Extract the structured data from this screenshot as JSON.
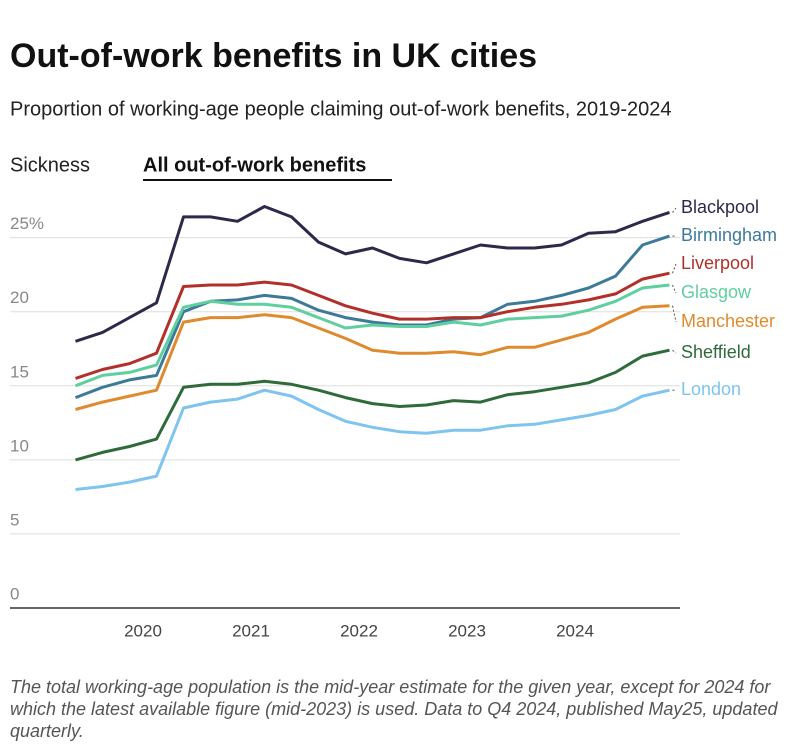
{
  "chart_data": {
    "type": "line",
    "title": "Out-of-work benefits in UK cities",
    "subtitle": "Proportion of working-age people claiming out-of-work benefits, 2019-2024",
    "tabs": [
      "Sickness",
      "All out-of-work benefits"
    ],
    "note": "The total working-age population is the mid-year estimate for the given year, except for 2024 for which the latest available figure (mid-2023) is used. Data to Q4 2024, published May25, updated quarterly.",
    "x": [
      2019.375,
      2019.625,
      2019.875,
      2020.125,
      2020.375,
      2020.625,
      2020.875,
      2021.125,
      2021.375,
      2021.625,
      2021.875,
      2022.125,
      2022.375,
      2022.625,
      2022.875,
      2023.125,
      2023.375,
      2023.625,
      2023.875,
      2024.125,
      2024.375,
      2024.625,
      2024.875
    ],
    "xlim": [
      2019,
      2025
    ],
    "xticks": [
      2020,
      2021,
      2022,
      2023,
      2024
    ],
    "ylim": [
      0,
      27
    ],
    "yticks": [
      0,
      5,
      10,
      15,
      20,
      {
        "value": 25,
        "label": "25%"
      }
    ],
    "grid": true,
    "series": [
      {
        "name": "Blackpool",
        "color": "#2b2a4a",
        "values": [
          18.0,
          18.6,
          19.6,
          20.6,
          26.4,
          26.4,
          26.1,
          27.1,
          26.4,
          24.7,
          23.9,
          24.3,
          23.6,
          23.3,
          23.9,
          24.5,
          24.3,
          24.3,
          24.5,
          25.3,
          25.4,
          26.1,
          26.7
        ]
      },
      {
        "name": "Birmingham",
        "color": "#3d7a9a",
        "values": [
          14.2,
          14.9,
          15.4,
          15.7,
          20.0,
          20.7,
          20.8,
          21.1,
          20.9,
          20.1,
          19.6,
          19.3,
          19.1,
          19.1,
          19.5,
          19.6,
          20.5,
          20.7,
          21.1,
          21.6,
          22.4,
          24.5,
          25.1
        ]
      },
      {
        "name": "Liverpool",
        "color": "#b2302a",
        "values": [
          15.5,
          16.1,
          16.5,
          17.2,
          21.7,
          21.8,
          21.8,
          22.0,
          21.8,
          21.1,
          20.4,
          19.9,
          19.5,
          19.5,
          19.6,
          19.6,
          20.0,
          20.3,
          20.5,
          20.8,
          21.2,
          22.2,
          22.6
        ]
      },
      {
        "name": "Glasgow",
        "color": "#5fcf9f",
        "values": [
          15.0,
          15.7,
          15.9,
          16.4,
          20.3,
          20.7,
          20.5,
          20.5,
          20.3,
          19.6,
          18.9,
          19.1,
          19.0,
          19.0,
          19.3,
          19.1,
          19.5,
          19.6,
          19.7,
          20.1,
          20.7,
          21.6,
          21.8
        ]
      },
      {
        "name": "Manchester",
        "color": "#e08a2e",
        "values": [
          13.4,
          13.9,
          14.3,
          14.7,
          19.3,
          19.6,
          19.6,
          19.8,
          19.6,
          18.9,
          18.2,
          17.4,
          17.2,
          17.2,
          17.3,
          17.1,
          17.6,
          17.6,
          18.1,
          18.6,
          19.5,
          20.3,
          20.4
        ]
      },
      {
        "name": "Sheffield",
        "color": "#2f6b3a",
        "values": [
          10.0,
          10.5,
          10.9,
          11.4,
          14.9,
          15.1,
          15.1,
          15.3,
          15.1,
          14.7,
          14.2,
          13.8,
          13.6,
          13.7,
          14.0,
          13.9,
          14.4,
          14.6,
          14.9,
          15.2,
          15.9,
          17.0,
          17.4
        ]
      },
      {
        "name": "London",
        "color": "#7ec4ef",
        "values": [
          8.0,
          8.2,
          8.5,
          8.9,
          13.5,
          13.9,
          14.1,
          14.7,
          14.3,
          13.4,
          12.6,
          12.2,
          11.9,
          11.8,
          12.0,
          12.0,
          12.3,
          12.4,
          12.7,
          13.0,
          13.4,
          14.3,
          14.7
        ]
      }
    ]
  }
}
